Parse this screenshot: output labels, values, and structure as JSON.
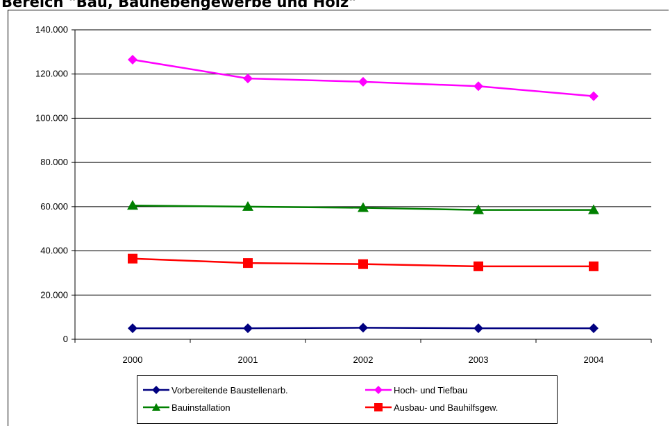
{
  "chart_data": {
    "type": "line",
    "title": "Bereich \"Bau, Baunebengewerbe und Holz\"",
    "xlabel": "",
    "ylabel": "",
    "categories": [
      "2000",
      "2001",
      "2002",
      "2003",
      "2004"
    ],
    "ylim": [
      0,
      140000
    ],
    "yticks": [
      0,
      20000,
      40000,
      60000,
      80000,
      100000,
      120000,
      140000
    ],
    "ytick_labels": [
      "0",
      "20.000",
      "40.000",
      "60.000",
      "80.000",
      "100.000",
      "120.000",
      "140.000"
    ],
    "grid": true,
    "legend_position": "bottom",
    "series": [
      {
        "name": "Vorbereitende Baustellenarb.",
        "values": [
          5000,
          5000,
          5200,
          5000,
          5000
        ],
        "color": "#000080",
        "marker": "diamond"
      },
      {
        "name": "Hoch- und Tiefbau",
        "values": [
          126500,
          118000,
          116500,
          114500,
          110000
        ],
        "color": "#ff00ff",
        "marker": "diamond"
      },
      {
        "name": "Bauinstallation",
        "values": [
          60500,
          60000,
          59500,
          58500,
          58500
        ],
        "color": "#008000",
        "marker": "triangle"
      },
      {
        "name": "Ausbau- und Bauhilfsgew.",
        "values": [
          36500,
          34500,
          34000,
          33000,
          33000
        ],
        "color": "#ff0000",
        "marker": "square"
      }
    ]
  }
}
